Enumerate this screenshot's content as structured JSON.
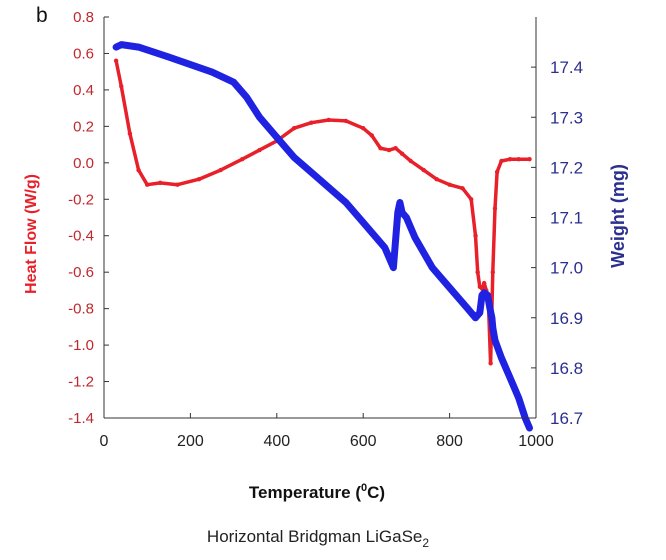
{
  "panel_label": "b",
  "caption": {
    "main": "Horizontal Bridgman LiGaSe",
    "sub": "2"
  },
  "chart_data": {
    "type": "line",
    "xlabel": {
      "before": "Temperature (",
      "sup": "0",
      "after": "C)"
    },
    "xlim": [
      0,
      1000
    ],
    "x_ticks": [
      "0",
      "200",
      "400",
      "600",
      "800",
      "1000"
    ],
    "y_left": {
      "label": "Heat Flow  (W/g)",
      "lim": [
        -1.4,
        0.8
      ],
      "ticks": [
        "0.8",
        "0.6",
        "0.4",
        "0.2",
        "0.0",
        "-0.2",
        "-0.4",
        "-0.6",
        "-0.8",
        "-1.0",
        "-1.2",
        "-1.4"
      ],
      "color": "#c0282d"
    },
    "y_right": {
      "label": "Weight (mg)",
      "lim": [
        16.7,
        17.5
      ],
      "ticks": [
        "17.4",
        "17.3",
        "17.2",
        "17.1",
        "17.0",
        "16.9",
        "16.8",
        "16.7"
      ],
      "color": "#2b2f8f"
    },
    "grid": false,
    "series": [
      {
        "axis": "left",
        "color": "#e8202a",
        "x": [
          28,
          40,
          60,
          80,
          100,
          130,
          170,
          220,
          270,
          320,
          360,
          400,
          440,
          480,
          520,
          560,
          600,
          620,
          640,
          660,
          675,
          690,
          710,
          740,
          770,
          800,
          830,
          850,
          860,
          865,
          870,
          875,
          880,
          885,
          890,
          895,
          900,
          905,
          910,
          920,
          940,
          960,
          985
        ],
        "values": [
          0.56,
          0.42,
          0.16,
          -0.04,
          -0.12,
          -0.11,
          -0.12,
          -0.09,
          -0.04,
          0.02,
          0.07,
          0.12,
          0.19,
          0.22,
          0.235,
          0.23,
          0.19,
          0.15,
          0.08,
          0.07,
          0.08,
          0.05,
          0.01,
          -0.04,
          -0.09,
          -0.12,
          -0.14,
          -0.2,
          -0.4,
          -0.6,
          -0.68,
          -0.69,
          -0.66,
          -0.7,
          -0.78,
          -1.1,
          -0.6,
          -0.25,
          -0.05,
          0.01,
          0.02,
          0.02,
          0.02
        ]
      },
      {
        "axis": "right",
        "color": "#1f22e0",
        "x": [
          28,
          40,
          80,
          150,
          200,
          250,
          300,
          330,
          360,
          400,
          440,
          480,
          520,
          560,
          600,
          630,
          650,
          670,
          680,
          685,
          690,
          700,
          720,
          760,
          800,
          840,
          860,
          870,
          875,
          880,
          888,
          893,
          898,
          900,
          905,
          920,
          940,
          960,
          975,
          985
        ],
        "values": [
          17.44,
          17.445,
          17.44,
          17.42,
          17.405,
          17.39,
          17.37,
          17.34,
          17.3,
          17.26,
          17.22,
          17.19,
          17.16,
          17.13,
          17.09,
          17.06,
          17.04,
          17.0,
          17.11,
          17.13,
          17.11,
          17.1,
          17.06,
          17.0,
          16.96,
          16.92,
          16.9,
          16.91,
          16.945,
          16.95,
          16.945,
          16.92,
          16.9,
          16.88,
          16.855,
          16.82,
          16.78,
          16.74,
          16.7,
          16.68
        ]
      }
    ]
  }
}
